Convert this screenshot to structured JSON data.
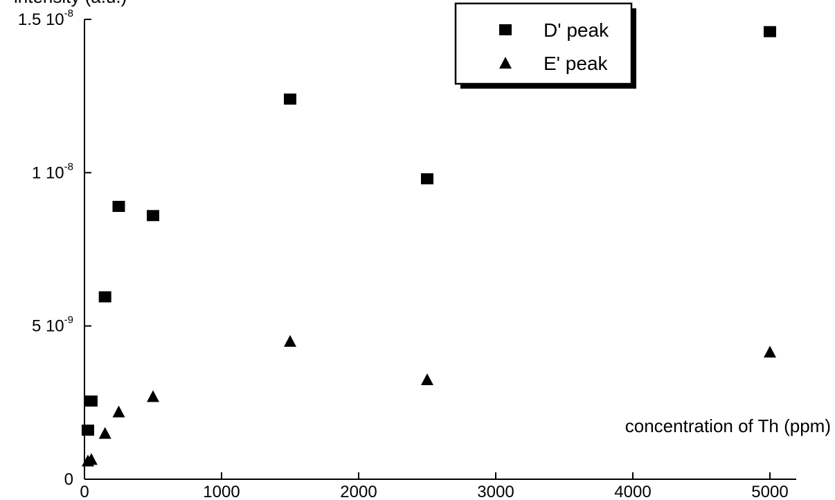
{
  "chart_data": {
    "type": "scatter",
    "ylabel": "intensity (a.u.)",
    "xlabel": "concentration of Th (ppm)",
    "xlim": [
      0,
      5400
    ],
    "ylim": [
      0,
      1.5e-08
    ],
    "x_ticks": [
      {
        "value": 0,
        "label": "0"
      },
      {
        "value": 1000,
        "label": "1000"
      },
      {
        "value": 2000,
        "label": "2000"
      },
      {
        "value": 3000,
        "label": "3000"
      },
      {
        "value": 4000,
        "label": "4000"
      },
      {
        "value": 5000,
        "label": "5000"
      }
    ],
    "y_ticks": [
      {
        "value": 0,
        "mantissa": "0",
        "exponent": ""
      },
      {
        "value": 5e-09,
        "mantissa": "5 10",
        "exponent": "-9"
      },
      {
        "value": 1e-08,
        "mantissa": "1 10",
        "exponent": "-8"
      },
      {
        "value": 1.5e-08,
        "mantissa": "1.5 10",
        "exponent": "-8"
      }
    ],
    "grid": false,
    "legend_position": "top-right",
    "series": [
      {
        "name": "D' peak",
        "marker": "square",
        "color": "#000000",
        "x": [
          25,
          50,
          150,
          250,
          500,
          1500,
          2500,
          5000
        ],
        "y": [
          1.6e-09,
          2.55e-09,
          5.95e-09,
          8.9e-09,
          8.6e-09,
          1.24e-08,
          9.8e-09,
          1.46e-08
        ]
      },
      {
        "name": "E' peak",
        "marker": "triangle",
        "color": "#000000",
        "x": [
          25,
          50,
          150,
          250,
          500,
          1500,
          2500,
          5000
        ],
        "y": [
          6e-10,
          6.5e-10,
          1.5e-09,
          2.2e-09,
          2.7e-09,
          4.5e-09,
          3.25e-09,
          4.15e-09
        ]
      }
    ]
  }
}
